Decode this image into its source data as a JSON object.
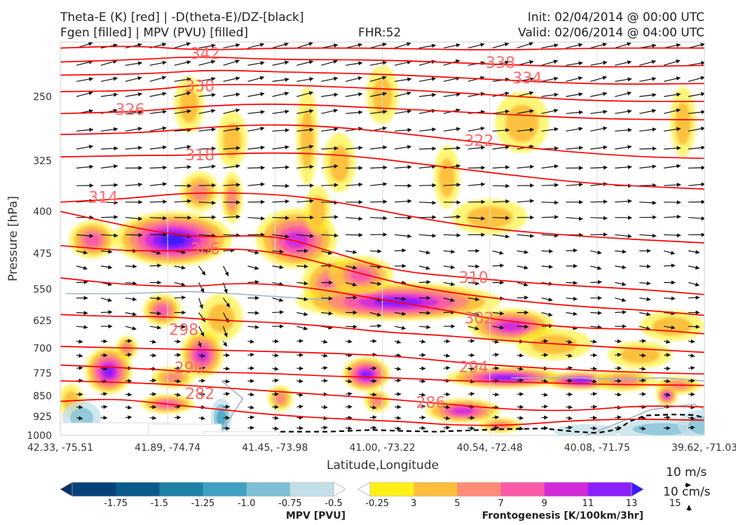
{
  "header": {
    "title_left_1": "Theta-E (K) [red] | -D(theta-E)/DZ-[black]",
    "title_left_2": "Fgen [filled] | MPV (PVU) [filled]",
    "title_center": "FHR:52",
    "title_right_1": "Init: 02/04/2014 @ 00:00 UTC",
    "title_right_2": "Valid: 02/06/2014 @ 04:00 UTC"
  },
  "colors": {
    "theta_e": "#ff0000",
    "theta_e_label": "#ff6b6b",
    "wind_arrow": "#111111",
    "mpv_contour": "#a0b4c8",
    "dz_line": "#000000"
  },
  "quiver_key": {
    "horizontal": "10 m/s",
    "vertical": "10 cm/s"
  },
  "colorbars": {
    "mpv": {
      "title": "MPV [PVU]",
      "ticks": [
        "-1.75",
        "-1.5",
        "-1.25",
        "-1.0",
        "-0.75",
        "-0.5",
        "-0.25"
      ],
      "colors": [
        "#08306b",
        "#08427a",
        "#0b5a8c",
        "#1f80a8",
        "#3fa0c2",
        "#7fc0d6",
        "#c2dfe8",
        "#ffffff"
      ]
    },
    "fgen": {
      "title": "Frontogenesis [K/100km/3hr]",
      "ticks": [
        "3",
        "5",
        "7",
        "9",
        "11",
        "13",
        "15"
      ],
      "colors": [
        "#ffffff",
        "#fff01a",
        "#fdbf3c",
        "#fc8b78",
        "#fc5aa8",
        "#d22ad8",
        "#8a1fff",
        "#3a1aff"
      ]
    }
  },
  "chart_data": {
    "type": "cross-section",
    "title": "Theta-E (K) [red] | -D(theta-E)/DZ-[black]",
    "xlabel": "Latitude,Longitude",
    "ylabel": "Pressure [hPa]",
    "x_ticks": [
      "42.33, -75.51",
      "41.89, -74.74",
      "41.45, -73.98",
      "41.00, -73.22",
      "40.54, -72.48",
      "40.08, -71.75",
      "39.62, -71.03"
    ],
    "y_ticks": [
      250,
      325,
      400,
      475,
      550,
      625,
      700,
      775,
      850,
      925,
      1000
    ],
    "ylim": [
      1000,
      200
    ],
    "y_scale": "log",
    "xlim": [
      0,
      6
    ],
    "theta_e_contours": [
      {
        "value": 342,
        "points": [
          [
            0,
            205
          ],
          [
            0.7,
            203
          ],
          [
            1.3,
            207
          ],
          [
            2,
            205
          ],
          [
            3,
            205
          ],
          [
            4,
            207
          ],
          [
            5,
            205
          ],
          [
            6,
            205
          ]
        ]
      },
      {
        "value": 338,
        "points": [
          [
            0,
            217
          ],
          [
            0.7,
            215
          ],
          [
            1.3,
            212
          ],
          [
            2,
            215
          ],
          [
            3,
            215
          ],
          [
            4,
            219
          ],
          [
            5,
            222
          ],
          [
            6,
            220
          ]
        ]
      },
      {
        "value": 334,
        "points": [
          [
            0,
            229
          ],
          [
            0.8,
            228
          ],
          [
            1.4,
            224
          ],
          [
            2,
            226
          ],
          [
            3,
            228
          ],
          [
            4,
            233
          ],
          [
            5,
            238
          ],
          [
            6,
            237
          ]
        ]
      },
      {
        "value": 330,
        "points": [
          [
            0,
            245
          ],
          [
            0.8,
            244
          ],
          [
            1.3,
            238
          ],
          [
            2,
            238
          ],
          [
            3,
            242
          ],
          [
            4,
            248
          ],
          [
            5,
            255
          ],
          [
            6,
            255
          ]
        ]
      },
      {
        "value": 326,
        "points": [
          [
            0,
            268
          ],
          [
            0.7,
            266
          ],
          [
            1.3,
            260
          ],
          [
            2,
            257
          ],
          [
            3,
            262
          ],
          [
            4,
            268
          ],
          [
            5,
            274
          ],
          [
            6,
            275
          ]
        ]
      },
      {
        "value": 322,
        "points": [
          [
            0,
            292
          ],
          [
            0.8,
            290
          ],
          [
            1.5,
            282
          ],
          [
            2.2,
            280
          ],
          [
            3,
            288
          ],
          [
            3.8,
            300
          ],
          [
            4.6,
            312
          ],
          [
            5.4,
            320
          ],
          [
            6,
            322
          ]
        ]
      },
      {
        "value": 318,
        "points": [
          [
            0,
            320
          ],
          [
            0.8,
            318
          ],
          [
            1.2,
            318
          ],
          [
            2,
            314
          ],
          [
            2.7,
            318
          ],
          [
            3.4,
            330
          ],
          [
            4.2,
            345
          ],
          [
            5,
            358
          ],
          [
            6,
            365
          ]
        ]
      },
      {
        "value": 314,
        "points": [
          [
            0,
            385
          ],
          [
            0.6,
            380
          ],
          [
            1.2,
            370
          ],
          [
            2,
            372
          ],
          [
            2.6,
            385
          ],
          [
            3.3,
            410
          ],
          [
            4,
            430
          ],
          [
            5,
            445
          ],
          [
            6,
            455
          ]
        ]
      },
      {
        "value": 310,
        "points": [
          [
            0,
            400
          ],
          [
            0.5,
            420
          ],
          [
            0.9,
            435
          ],
          [
            1.3,
            445
          ],
          [
            2,
            440
          ],
          [
            2.5,
            470
          ],
          [
            3.1,
            510
          ],
          [
            3.8,
            525
          ],
          [
            4.6,
            540
          ],
          [
            5.4,
            550
          ],
          [
            6,
            562
          ]
        ]
      },
      {
        "value": 306,
        "points": [
          [
            0,
            460
          ],
          [
            0.6,
            470
          ],
          [
            1.1,
            470
          ],
          [
            1.7,
            465
          ],
          [
            2.2,
            480
          ],
          [
            2.7,
            510
          ],
          [
            3.3,
            545
          ],
          [
            4,
            570
          ],
          [
            4.8,
            590
          ],
          [
            5.5,
            600
          ],
          [
            6,
            612
          ]
        ]
      },
      {
        "value": 302,
        "points": [
          [
            0,
            525
          ],
          [
            0.6,
            540
          ],
          [
            1.2,
            545
          ],
          [
            1.7,
            535
          ],
          [
            2.3,
            545
          ],
          [
            2.9,
            570
          ],
          [
            3.5,
            595
          ],
          [
            4.1,
            625
          ],
          [
            4.8,
            645
          ],
          [
            5.5,
            648
          ],
          [
            6,
            660
          ]
        ]
      },
      {
        "value": 298,
        "points": [
          [
            0,
            610
          ],
          [
            0.5,
            615
          ],
          [
            1,
            615
          ],
          [
            1.5,
            625
          ],
          [
            2,
            630
          ],
          [
            2.5,
            640
          ],
          [
            3,
            655
          ],
          [
            3.6,
            665
          ],
          [
            4.2,
            680
          ],
          [
            5,
            695
          ],
          [
            6,
            712
          ]
        ]
      },
      {
        "value": 294,
        "points": [
          [
            0,
            695
          ],
          [
            0.7,
            700
          ],
          [
            1.4,
            705
          ],
          [
            2,
            710
          ],
          [
            2.6,
            715
          ],
          [
            3.2,
            725
          ],
          [
            3.8,
            745
          ],
          [
            4.6,
            762
          ],
          [
            5.3,
            772
          ],
          [
            6,
            778
          ]
        ]
      },
      {
        "value": 290,
        "points": [
          [
            0,
            750
          ],
          [
            0.7,
            760
          ],
          [
            1.3,
            772
          ],
          [
            1.9,
            775
          ],
          [
            2.5,
            785
          ],
          [
            3.1,
            790
          ],
          [
            3.7,
            800
          ],
          [
            4.4,
            805
          ],
          [
            5.1,
            812
          ],
          [
            6,
            815
          ]
        ]
      },
      {
        "value": 286,
        "points": [
          [
            0,
            800
          ],
          [
            0.6,
            805
          ],
          [
            1.2,
            815
          ],
          [
            1.8,
            830
          ],
          [
            2.4,
            845
          ],
          [
            3,
            860
          ],
          [
            3.6,
            880
          ],
          [
            4.2,
            900
          ],
          [
            4.8,
            905
          ],
          [
            5.4,
            885
          ],
          [
            6,
            890
          ]
        ]
      },
      {
        "value": 282,
        "points": [
          [
            0,
            870
          ],
          [
            0.5,
            860
          ],
          [
            1,
            880
          ],
          [
            1.5,
            900
          ],
          [
            2,
            920
          ],
          [
            2.6,
            935
          ],
          [
            3.2,
            945
          ],
          [
            3.7,
            960
          ],
          [
            4.2,
            960
          ],
          [
            4.8,
            940
          ],
          [
            5.4,
            935
          ],
          [
            6,
            940
          ]
        ]
      }
    ]
  }
}
